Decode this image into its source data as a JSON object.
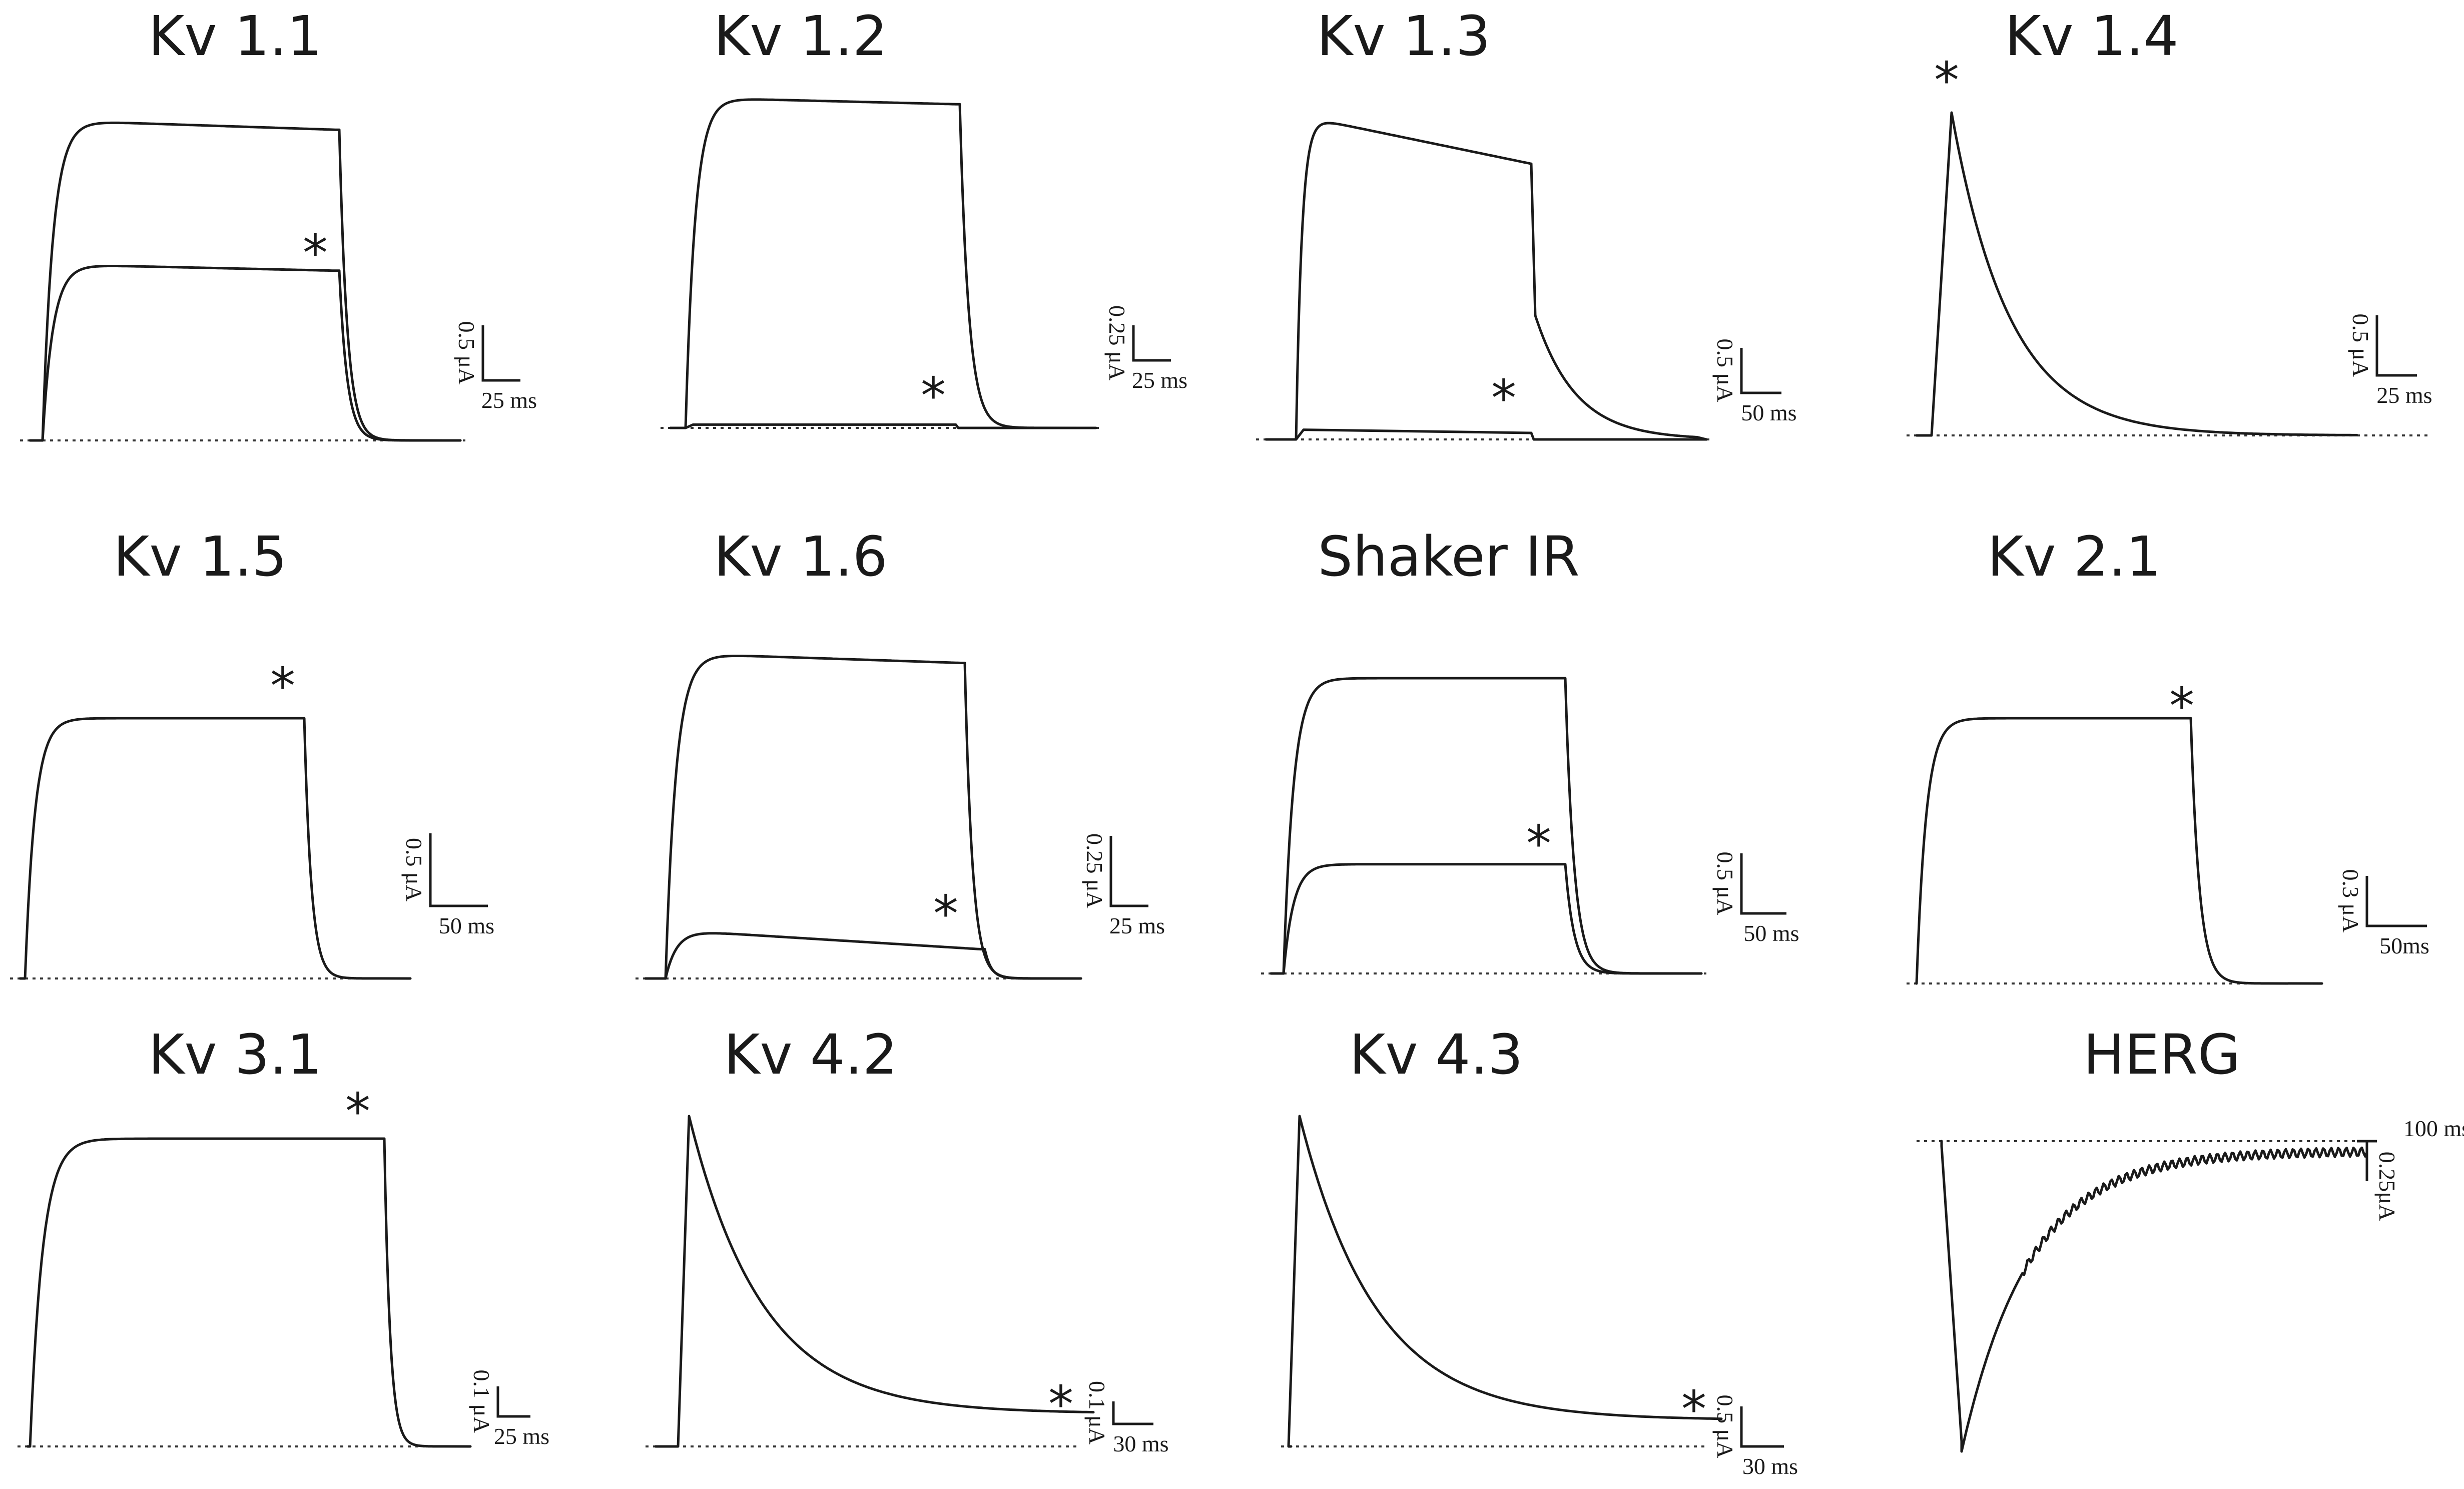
{
  "chart_data": [
    {
      "type": "line",
      "title": "Kv 1.1",
      "scale_bar": {
        "current": "0.5 μA",
        "time": "25 ms"
      },
      "marker": "*",
      "series": [
        {
          "kind": "plateau",
          "peak": 1.0,
          "end": 0.97
        },
        {
          "kind": "plateau",
          "peak": 0.55,
          "end": 0.53
        }
      ]
    },
    {
      "type": "line",
      "title": "Kv 1.2",
      "scale_bar": {
        "current": "0.25 μA",
        "time": "25 ms"
      },
      "marker": "*",
      "series": [
        {
          "kind": "plateau",
          "peak": 1.0,
          "end": 0.98
        },
        {
          "kind": "flat",
          "peak": 0.01,
          "end": 0.01
        }
      ]
    },
    {
      "type": "line",
      "title": "Kv 1.3",
      "scale_bar": {
        "current": "0.5 μA",
        "time": "50 ms"
      },
      "marker": "*",
      "series": [
        {
          "kind": "slow-inactivating",
          "peak": 1.0,
          "end": 0.85
        },
        {
          "kind": "flat",
          "peak": 0.03,
          "end": 0.02
        }
      ]
    },
    {
      "type": "line",
      "title": "Kv 1.4",
      "scale_bar": {
        "current": "0.5 μA",
        "time": "25 ms"
      },
      "marker": "*",
      "series": [
        {
          "kind": "transient",
          "peak": 1.0,
          "end": 0.0
        }
      ]
    },
    {
      "type": "line",
      "title": "Kv 1.5",
      "scale_bar": {
        "current": "0.5 μA",
        "time": "50 ms"
      },
      "marker": "*",
      "series": [
        {
          "kind": "plateau",
          "peak": 1.0,
          "end": 1.0
        }
      ]
    },
    {
      "type": "line",
      "title": "Kv 1.6",
      "scale_bar": {
        "current": "0.25 μA",
        "time": "25 ms"
      },
      "marker": "*",
      "series": [
        {
          "kind": "plateau",
          "peak": 1.0,
          "end": 0.97
        },
        {
          "kind": "plateau",
          "peak": 0.15,
          "end": 0.09
        }
      ]
    },
    {
      "type": "line",
      "title": "Shaker IR",
      "scale_bar": {
        "current": "0.5 μA",
        "time": "50 ms"
      },
      "marker": "*",
      "series": [
        {
          "kind": "plateau",
          "peak": 1.0,
          "end": 1.0
        },
        {
          "kind": "plateau",
          "peak": 0.37,
          "end": 0.37
        }
      ]
    },
    {
      "type": "line",
      "title": "Kv 2.1",
      "scale_bar": {
        "current": "0.3 μA",
        "time": "50ms"
      },
      "marker": "*",
      "series": [
        {
          "kind": "plateau",
          "peak": 1.0,
          "end": 1.0
        }
      ]
    },
    {
      "type": "line",
      "title": "Kv 3.1",
      "scale_bar": {
        "current": "0.1 μA",
        "time": "25 ms"
      },
      "marker": "*",
      "series": [
        {
          "kind": "plateau",
          "peak": 1.0,
          "end": 1.0
        }
      ]
    },
    {
      "type": "line",
      "title": "Kv 4.2",
      "scale_bar": {
        "current": "0.1 μA",
        "time": "30 ms"
      },
      "marker": "*",
      "series": [
        {
          "kind": "transient",
          "peak": 1.0,
          "end": 0.1
        }
      ]
    },
    {
      "type": "line",
      "title": "Kv 4.3",
      "scale_bar": {
        "current": "0.5 μA",
        "time": "30 ms"
      },
      "marker": "*",
      "series": [
        {
          "kind": "transient",
          "peak": 1.0,
          "end": 0.08
        }
      ]
    },
    {
      "type": "line",
      "title": "HERG",
      "scale_bar": {
        "current": "0.25μA",
        "time": "100 ms"
      },
      "marker": "",
      "series": [
        {
          "kind": "tail-inward",
          "peak": -1.0,
          "end": -0.02
        }
      ]
    }
  ]
}
